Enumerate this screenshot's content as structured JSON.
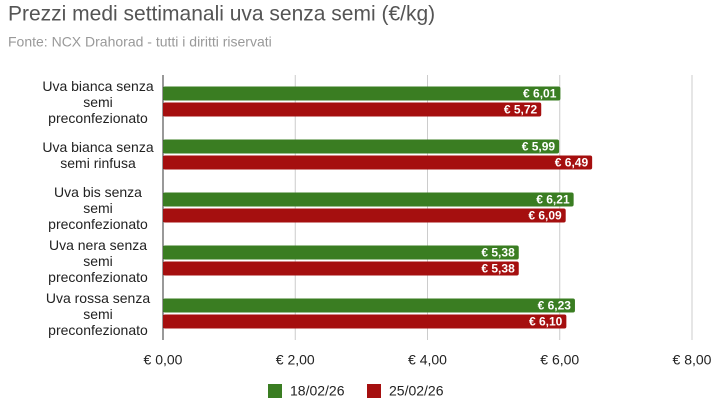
{
  "chart_data": {
    "type": "hbar",
    "title": "Prezzi medi settimanali uva senza semi (€/kg)",
    "subtitle": "Fonte: NCX Drahorad - tutti i diritti riservati",
    "categories": [
      "Uva bianca senza semi preconfezionato",
      "Uva bianca senza semi rinfusa",
      "Uva bis senza semi preconfezionato",
      "Uva nera senza semi preconfezionato",
      "Uva rossa senza semi preconfezionato"
    ],
    "series": [
      {
        "name": "18/02/26",
        "color": "#3a7d22",
        "values": [
          6.01,
          5.99,
          6.21,
          5.38,
          6.23
        ],
        "value_labels": [
          "€ 6,01",
          "€ 5,99",
          "€ 6,21",
          "€ 5,38",
          "€ 6,23"
        ]
      },
      {
        "name": "25/02/26",
        "color": "#a50f0f",
        "values": [
          5.72,
          6.49,
          6.09,
          5.38,
          6.1
        ],
        "value_labels": [
          "€ 5,72",
          "€ 6,49",
          "€ 6,09",
          "€ 5,38",
          "€ 6,10"
        ]
      }
    ],
    "xlim": [
      0,
      8
    ],
    "xticks": [
      {
        "value": 0,
        "label": "€ 0,00"
      },
      {
        "value": 2,
        "label": "€ 2,00"
      },
      {
        "value": 4,
        "label": "€ 4,00"
      },
      {
        "value": 6,
        "label": "€ 6,00"
      },
      {
        "value": 8,
        "label": "€ 8,00"
      }
    ],
    "grid": true
  }
}
